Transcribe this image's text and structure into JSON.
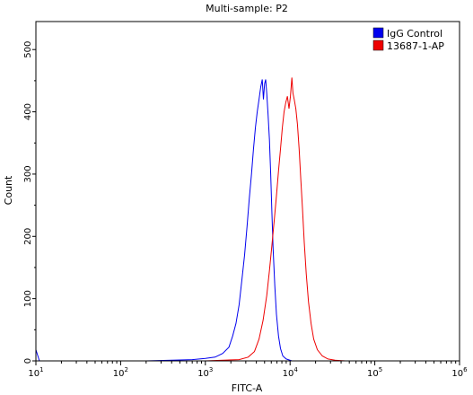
{
  "chart_data": {
    "type": "line",
    "title": "Multi-sample: P2",
    "xlabel": "FITC-A",
    "ylabel": "Count",
    "xscale": "log",
    "xlim": [
      10,
      1000000
    ],
    "ylim": [
      0,
      545
    ],
    "y_ticks": [
      0,
      100,
      200,
      300,
      400,
      500
    ],
    "x_ticks": [
      {
        "base": "10",
        "exp": "1",
        "value": 10
      },
      {
        "base": "10",
        "exp": "2",
        "value": 100
      },
      {
        "base": "10",
        "exp": "3",
        "value": 1000
      },
      {
        "base": "10",
        "exp": "4",
        "value": 10000
      },
      {
        "base": "10",
        "exp": "5",
        "value": 100000
      },
      {
        "base": "10",
        "exp": "6",
        "value": 1000000
      }
    ],
    "legend_position": "top-right",
    "grid": false,
    "series": [
      {
        "name": "IgG Control",
        "color": "#0000ee",
        "points": [
          [
            10,
            18
          ],
          [
            11,
            0
          ],
          [
            200,
            0
          ],
          [
            400,
            1
          ],
          [
            700,
            2
          ],
          [
            1000,
            4
          ],
          [
            1300,
            6
          ],
          [
            1600,
            12
          ],
          [
            1900,
            22
          ],
          [
            2100,
            40
          ],
          [
            2300,
            60
          ],
          [
            2500,
            90
          ],
          [
            2700,
            130
          ],
          [
            2900,
            170
          ],
          [
            3100,
            215
          ],
          [
            3300,
            260
          ],
          [
            3500,
            300
          ],
          [
            3700,
            340
          ],
          [
            3900,
            375
          ],
          [
            4100,
            400
          ],
          [
            4300,
            420
          ],
          [
            4500,
            440
          ],
          [
            4700,
            452
          ],
          [
            4850,
            420
          ],
          [
            5000,
            445
          ],
          [
            5150,
            452
          ],
          [
            5300,
            430
          ],
          [
            5500,
            395
          ],
          [
            5700,
            355
          ],
          [
            5900,
            300
          ],
          [
            6100,
            240
          ],
          [
            6300,
            180
          ],
          [
            6600,
            120
          ],
          [
            6900,
            75
          ],
          [
            7300,
            40
          ],
          [
            7700,
            20
          ],
          [
            8200,
            8
          ],
          [
            9000,
            3
          ],
          [
            10500,
            0
          ],
          [
            20000,
            0
          ],
          [
            1000000,
            0
          ]
        ]
      },
      {
        "name": "13687-1-AP",
        "color": "#ee0000",
        "points": [
          [
            1000,
            0
          ],
          [
            2500,
            2
          ],
          [
            3200,
            6
          ],
          [
            3800,
            15
          ],
          [
            4300,
            35
          ],
          [
            4800,
            65
          ],
          [
            5300,
            105
          ],
          [
            5700,
            145
          ],
          [
            6100,
            185
          ],
          [
            6500,
            225
          ],
          [
            6900,
            265
          ],
          [
            7300,
            305
          ],
          [
            7700,
            340
          ],
          [
            8100,
            375
          ],
          [
            8500,
            400
          ],
          [
            8900,
            415
          ],
          [
            9300,
            425
          ],
          [
            9700,
            405
          ],
          [
            10100,
            425
          ],
          [
            10500,
            455
          ],
          [
            10800,
            430
          ],
          [
            11200,
            420
          ],
          [
            11700,
            405
          ],
          [
            12200,
            380
          ],
          [
            12800,
            340
          ],
          [
            13400,
            290
          ],
          [
            14000,
            245
          ],
          [
            14700,
            190
          ],
          [
            15500,
            140
          ],
          [
            16500,
            95
          ],
          [
            17700,
            60
          ],
          [
            19000,
            35
          ],
          [
            21000,
            18
          ],
          [
            24000,
            8
          ],
          [
            28000,
            3
          ],
          [
            34000,
            1
          ],
          [
            45000,
            0
          ],
          [
            1000000,
            0
          ]
        ]
      }
    ]
  }
}
